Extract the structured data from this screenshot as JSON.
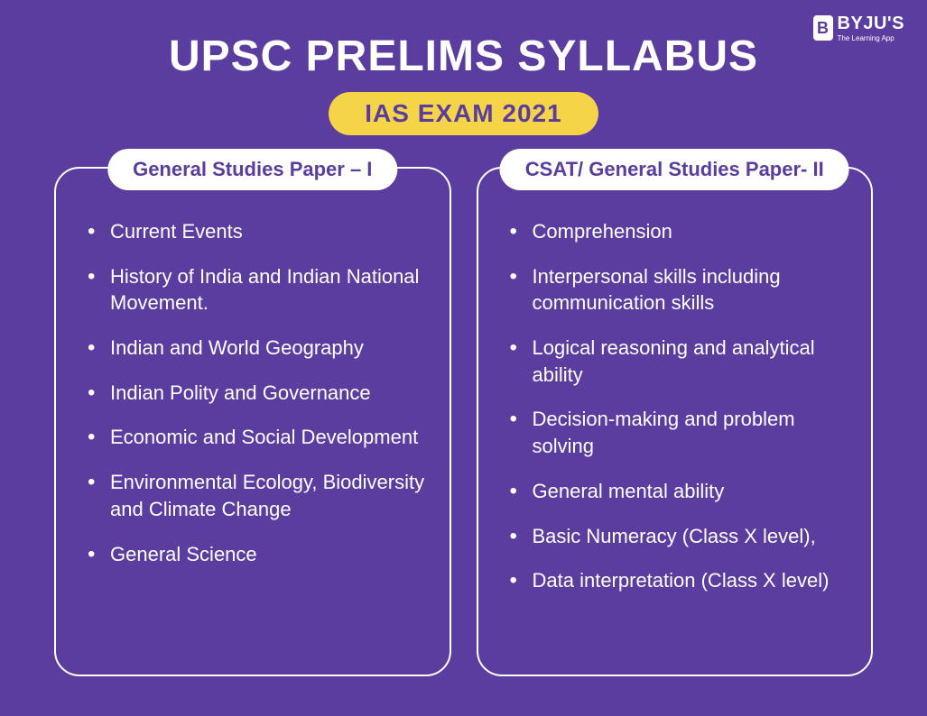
{
  "logo": {
    "brand": "BYJU'S",
    "tagline": "The Learning App",
    "icon_letter": "B"
  },
  "title": "UPSC PRELIMS SYLLABUS",
  "subtitle": "IAS EXAM 2021",
  "colors": {
    "background": "#5a3d9e",
    "badge_bg": "#f5d547",
    "badge_text": "#5a3d9e",
    "panel_border": "#ffffff",
    "panel_header_bg": "#ffffff",
    "panel_header_text": "#5a3d9e",
    "list_text": "#ffffff",
    "title_text": "#ffffff"
  },
  "typography": {
    "title_fontsize": 48,
    "subtitle_fontsize": 28,
    "panel_header_fontsize": 22,
    "list_item_fontsize": 22
  },
  "panels": [
    {
      "header": "General Studies Paper – I",
      "items": [
        "Current Events",
        "History of India and Indian National Movement.",
        "Indian and World Geography",
        "Indian Polity and Governance",
        "Economic and Social Development",
        "Environmental Ecology, Biodiversity and Climate Change",
        "General Science"
      ]
    },
    {
      "header": "CSAT/ General Studies Paper- II",
      "items": [
        "Comprehension",
        "Interpersonal skills including communication skills",
        "Logical reasoning and analytical ability",
        "Decision-making and problem solving",
        "General mental ability",
        "Basic Numeracy (Class X level),",
        "Data interpretation (Class X level)"
      ]
    }
  ]
}
